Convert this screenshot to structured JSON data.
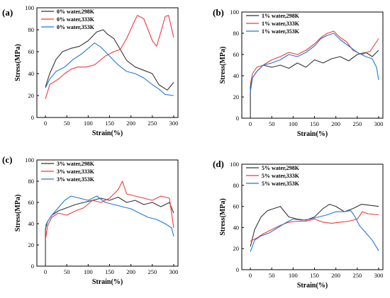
{
  "colors": {
    "black": "#333333",
    "red": "#ee3b3b",
    "blue": "#2277dd"
  },
  "chart_data": [
    {
      "panel": "(a)",
      "type": "line",
      "xlabel": "Strain(%)",
      "ylabel": "Stress(MPa)",
      "xlim": [
        -20,
        310
      ],
      "ylim": [
        0,
        100
      ],
      "xticks": [
        0,
        50,
        100,
        150,
        200,
        250,
        300
      ],
      "yticks": [
        0,
        20,
        40,
        60,
        80,
        100
      ],
      "legend": "top-left",
      "series": [
        {
          "name": "0% water,298K",
          "color": "#333333",
          "x": [
            0,
            10,
            25,
            40,
            60,
            80,
            100,
            120,
            135,
            145,
            160,
            175,
            190,
            210,
            230,
            250,
            265,
            285,
            300
          ],
          "y": [
            28,
            40,
            53,
            60,
            63,
            65,
            70,
            78,
            80,
            76,
            72,
            62,
            52,
            46,
            43,
            40,
            30,
            25,
            32
          ]
        },
        {
          "name": "0% water,333K",
          "color": "#ee3b3b",
          "x": [
            0,
            10,
            30,
            45,
            60,
            75,
            95,
            115,
            140,
            160,
            175,
            190,
            205,
            215,
            230,
            250,
            260,
            270,
            280,
            288,
            300
          ],
          "y": [
            17,
            30,
            35,
            40,
            44,
            46,
            46,
            48,
            56,
            60,
            62,
            72,
            85,
            93,
            90,
            70,
            65,
            78,
            92,
            93,
            73
          ]
        },
        {
          "name": "0% water,353K",
          "color": "#2277dd",
          "x": [
            0,
            10,
            25,
            45,
            65,
            85,
            100,
            115,
            130,
            150,
            170,
            190,
            210,
            230,
            250,
            265,
            280,
            300
          ],
          "y": [
            27,
            35,
            42,
            46,
            53,
            58,
            63,
            68,
            64,
            56,
            48,
            42,
            40,
            36,
            30,
            26,
            21,
            20
          ]
        }
      ]
    },
    {
      "panel": "(b)",
      "type": "line",
      "xlabel": "Strain(%)",
      "ylabel": "Stress(MPa)",
      "xlim": [
        -20,
        310
      ],
      "ylim": [
        0,
        100
      ],
      "xticks": [
        0,
        50,
        100,
        150,
        200,
        250,
        300
      ],
      "yticks": [
        0,
        20,
        40,
        60,
        80,
        100
      ],
      "legend": "top-left",
      "series": [
        {
          "name": "1% water,298K",
          "color": "#333333",
          "x": [
            0,
            0,
            5,
            15,
            30,
            50,
            70,
            90,
            110,
            130,
            150,
            170,
            190,
            210,
            230,
            250,
            270,
            285,
            300
          ],
          "y": [
            0,
            30,
            38,
            44,
            50,
            48,
            50,
            47,
            52,
            48,
            55,
            52,
            56,
            58,
            54,
            60,
            62,
            58,
            64
          ]
        },
        {
          "name": "1% water,333K",
          "color": "#ee3b3b",
          "x": [
            0,
            5,
            15,
            30,
            50,
            70,
            90,
            110,
            130,
            150,
            165,
            180,
            195,
            210,
            225,
            240,
            260,
            280,
            300
          ],
          "y": [
            32,
            42,
            48,
            50,
            55,
            58,
            62,
            60,
            64,
            70,
            76,
            80,
            82,
            76,
            72,
            64,
            60,
            63,
            75
          ]
        },
        {
          "name": "1% water,353K",
          "color": "#2277dd",
          "x": [
            0,
            5,
            15,
            30,
            50,
            70,
            90,
            110,
            130,
            150,
            165,
            180,
            195,
            210,
            230,
            250,
            270,
            285,
            295,
            300
          ],
          "y": [
            25,
            38,
            44,
            50,
            52,
            55,
            60,
            58,
            62,
            68,
            75,
            78,
            80,
            74,
            68,
            62,
            58,
            56,
            48,
            36
          ]
        }
      ]
    },
    {
      "panel": "(c)",
      "type": "line",
      "xlabel": "Strain(%)",
      "ylabel": "Stress(MPa)",
      "xlim": [
        -20,
        310
      ],
      "ylim": [
        0,
        100
      ],
      "xticks": [
        0,
        50,
        100,
        150,
        200,
        250,
        300
      ],
      "yticks": [
        0,
        20,
        40,
        60,
        80,
        100
      ],
      "legend": "top-left",
      "series": [
        {
          "name": "3% water,298K",
          "color": "#333333",
          "x": [
            0,
            0,
            5,
            15,
            30,
            50,
            70,
            90,
            110,
            130,
            150,
            170,
            190,
            210,
            230,
            250,
            270,
            290,
            300
          ],
          "y": [
            0,
            35,
            42,
            48,
            52,
            55,
            58,
            60,
            62,
            64,
            62,
            65,
            60,
            62,
            58,
            60,
            56,
            60,
            50
          ]
        },
        {
          "name": "3% water,333K",
          "color": "#ee3b3b",
          "x": [
            0,
            5,
            15,
            30,
            50,
            70,
            90,
            110,
            130,
            150,
            170,
            180,
            190,
            210,
            230,
            250,
            270,
            290,
            300
          ],
          "y": [
            25,
            38,
            46,
            50,
            48,
            52,
            55,
            62,
            60,
            64,
            72,
            80,
            68,
            66,
            64,
            62,
            66,
            64,
            36
          ]
        },
        {
          "name": "3% water,353K",
          "color": "#2277dd",
          "x": [
            0,
            5,
            15,
            30,
            45,
            60,
            80,
            100,
            120,
            140,
            160,
            180,
            200,
            220,
            240,
            260,
            280,
            295,
            300
          ],
          "y": [
            38,
            42,
            48,
            55,
            62,
            66,
            64,
            62,
            66,
            60,
            58,
            56,
            54,
            50,
            46,
            44,
            40,
            36,
            28
          ]
        }
      ]
    },
    {
      "panel": "(d)",
      "type": "line",
      "xlabel": "Strain(%)",
      "ylabel": "Stress(MPa)",
      "xlim": [
        -20,
        310
      ],
      "ylim": [
        0,
        100
      ],
      "xticks": [
        0,
        50,
        100,
        150,
        200,
        250,
        300
      ],
      "yticks": [
        0,
        20,
        40,
        60,
        80,
        100
      ],
      "legend": "top-left",
      "series": [
        {
          "name": "5% water,298K",
          "color": "#333333",
          "x": [
            0,
            10,
            25,
            40,
            55,
            70,
            80,
            90,
            110,
            130,
            150,
            170,
            185,
            200,
            220,
            240,
            260,
            280,
            300
          ],
          "y": [
            22,
            38,
            50,
            56,
            58,
            60,
            55,
            50,
            48,
            47,
            50,
            58,
            62,
            60,
            55,
            58,
            62,
            61,
            60
          ]
        },
        {
          "name": "5% water,333K",
          "color": "#ee3b3b",
          "x": [
            0,
            15,
            30,
            50,
            70,
            90,
            110,
            130,
            150,
            170,
            190,
            210,
            230,
            250,
            262,
            275,
            300
          ],
          "y": [
            27,
            30,
            34,
            38,
            42,
            45,
            46,
            46,
            48,
            45,
            44,
            45,
            46,
            48,
            55,
            53,
            52
          ]
        },
        {
          "name": "5% water,353K",
          "color": "#2277dd",
          "x": [
            0,
            10,
            25,
            45,
            65,
            85,
            100,
            120,
            140,
            160,
            180,
            200,
            220,
            235,
            245,
            255,
            270,
            285,
            300
          ],
          "y": [
            17,
            28,
            32,
            35,
            40,
            45,
            48,
            47,
            48,
            50,
            52,
            55,
            55,
            56,
            50,
            42,
            35,
            28,
            18
          ]
        }
      ]
    }
  ]
}
